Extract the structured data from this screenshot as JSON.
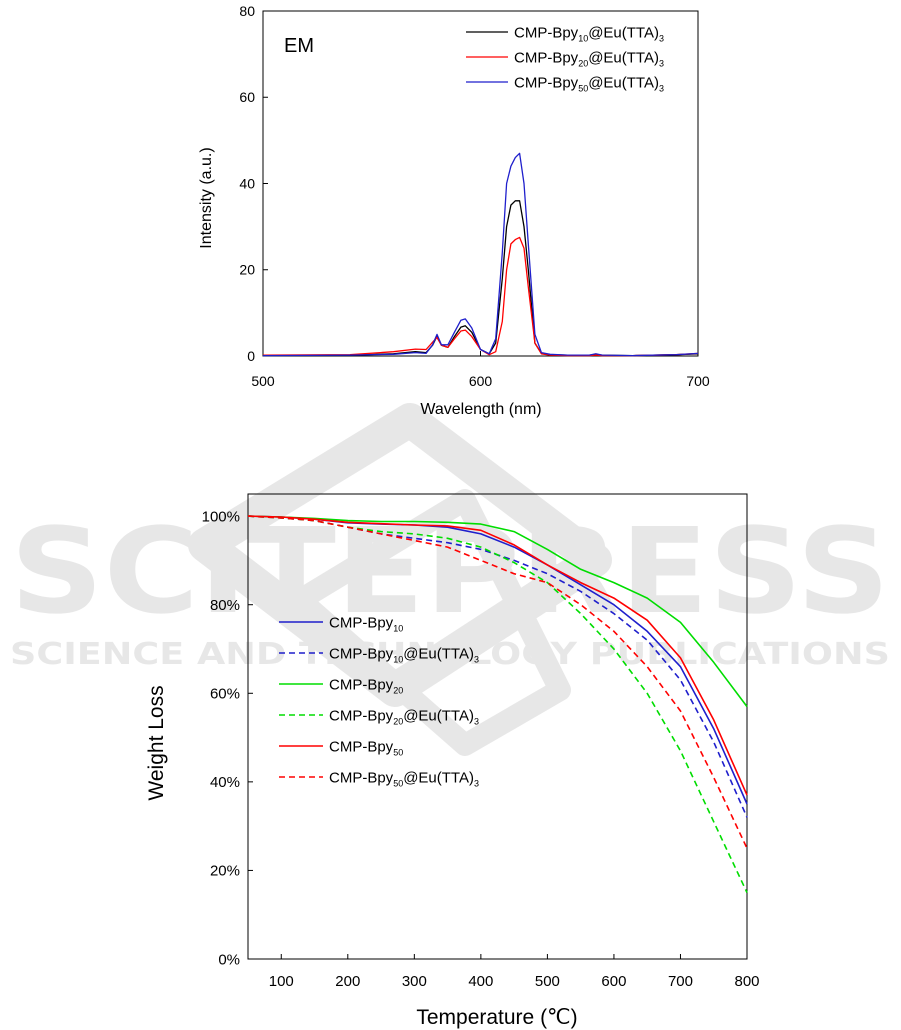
{
  "watermark": {
    "main": "SCITEPRESS",
    "sub": "SCIENCE AND TECHNOLOGY PUBLICATIONS"
  },
  "chart_data": [
    {
      "type": "line",
      "annotation": "EM",
      "xlabel": "Wavelength (nm)",
      "ylabel": "Intensity (a.u.)",
      "xlim": [
        500,
        700
      ],
      "ylim": [
        0,
        80
      ],
      "xticks": [
        "500",
        "600",
        "700"
      ],
      "yticks": [
        "0",
        "20",
        "40",
        "60",
        "80"
      ],
      "grid": false,
      "legend_position": "top-right",
      "x": [
        500,
        540,
        560,
        570,
        575,
        578,
        580,
        582,
        585,
        588,
        591,
        593,
        596,
        600,
        604,
        607,
        610,
        612,
        614,
        616,
        618,
        620,
        622,
        625,
        628,
        632,
        640,
        650,
        653,
        656,
        670,
        690,
        700
      ],
      "series": [
        {
          "name_main": "CMP-Bpy",
          "name_sub": "10",
          "name_tail": "@Eu(TTA)",
          "name_sub2": "3",
          "color": "#000000",
          "values": [
            0.2,
            0.2,
            0.5,
            1.0,
            0.8,
            2.5,
            4.6,
            2.5,
            2.0,
            4.5,
            6.7,
            7.0,
            5.5,
            1.5,
            0.5,
            3.0,
            18.0,
            30.0,
            35.0,
            36.0,
            36.0,
            30.0,
            20.0,
            3.0,
            0.6,
            0.3,
            0.2,
            0.2,
            0.3,
            0.2,
            0.1,
            0.3,
            0.5
          ]
        },
        {
          "name_main": "CMP-Bpy",
          "name_sub": "20",
          "name_tail": "@Eu(TTA)",
          "name_sub2": "3",
          "color": "#ff0000",
          "values": [
            0.2,
            0.3,
            1.0,
            1.6,
            1.5,
            3.2,
            4.3,
            2.5,
            2.0,
            4.0,
            5.8,
            6.0,
            4.5,
            1.5,
            0.3,
            1.0,
            8.0,
            20.0,
            26.0,
            27.0,
            27.5,
            25.0,
            16.0,
            3.0,
            0.5,
            0.2,
            0.1,
            0.1,
            0.2,
            0.1,
            0.1,
            0.3,
            0.6
          ]
        },
        {
          "name_main": "CMP-Bpy",
          "name_sub": "50",
          "name_tail": "@Eu(TTA)",
          "name_sub2": "3",
          "color": "#1f1fcc",
          "values": [
            0.1,
            0.2,
            0.4,
            0.8,
            0.6,
            2.6,
            5.0,
            2.6,
            2.6,
            5.5,
            8.3,
            8.6,
            6.5,
            1.5,
            0.5,
            4.0,
            24.0,
            40.0,
            44.0,
            46.0,
            47.0,
            40.0,
            26.0,
            5.0,
            0.8,
            0.4,
            0.2,
            0.2,
            0.5,
            0.2,
            0.1,
            0.3,
            0.6
          ]
        }
      ]
    },
    {
      "type": "line",
      "xlabel": "Temperature (℃)",
      "ylabel": "Weight Loss",
      "xlim": [
        50,
        800
      ],
      "ylim": [
        0,
        105
      ],
      "xticks": [
        "100",
        "200",
        "300",
        "400",
        "500",
        "600",
        "700",
        "800"
      ],
      "yticks": [
        "0%",
        "20%",
        "40%",
        "60%",
        "80%",
        "100%"
      ],
      "grid": false,
      "legend_position": "center-left",
      "x": [
        50,
        100,
        150,
        200,
        250,
        300,
        350,
        400,
        450,
        500,
        550,
        600,
        650,
        700,
        750,
        800
      ],
      "series": [
        {
          "name_main": "CMP-Bpy",
          "name_sub": "10",
          "name_tail": "",
          "name_sub2": "",
          "color": "#1f1fcc",
          "dash": false,
          "values": [
            100,
            99.8,
            99.3,
            98.5,
            98.2,
            98.0,
            97.5,
            96.0,
            93.0,
            89.0,
            84.5,
            80.0,
            74.0,
            66.0,
            52.0,
            35.0
          ]
        },
        {
          "name_main": "CMP-Bpy",
          "name_sub": "10",
          "name_tail": "@Eu(TTA)",
          "name_sub2": "3",
          "color": "#1f1fcc",
          "dash": true,
          "values": [
            100,
            99.6,
            99.0,
            97.5,
            96.0,
            95.0,
            94.0,
            92.5,
            90.0,
            87.0,
            83.0,
            78.0,
            72.0,
            63.0,
            49.0,
            32.0
          ]
        },
        {
          "name_main": "CMP-Bpy",
          "name_sub": "20",
          "name_tail": "",
          "name_sub2": "",
          "color": "#00dd00",
          "dash": false,
          "values": [
            100,
            99.8,
            99.5,
            99.0,
            98.8,
            98.8,
            98.6,
            98.2,
            96.5,
            92.5,
            88.0,
            85.0,
            81.5,
            76.0,
            67.0,
            57.0
          ]
        },
        {
          "name_main": "CMP-Bpy",
          "name_sub": "20",
          "name_tail": "@Eu(TTA)",
          "name_sub2": "3",
          "color": "#00dd00",
          "dash": true,
          "values": [
            100,
            99.6,
            99.0,
            97.5,
            96.5,
            96.0,
            95.0,
            93.0,
            89.5,
            85.0,
            78.0,
            70.0,
            60.0,
            47.0,
            31.0,
            15.0
          ]
        },
        {
          "name_main": "CMP-Bpy",
          "name_sub": "50",
          "name_tail": "",
          "name_sub2": "",
          "color": "#ff0000",
          "dash": false,
          "values": [
            100,
            99.8,
            99.3,
            98.6,
            98.3,
            98.0,
            97.8,
            96.8,
            93.5,
            89.0,
            85.0,
            81.5,
            76.5,
            68.0,
            54.0,
            37.0
          ]
        },
        {
          "name_main": "CMP-Bpy",
          "name_sub": "50",
          "name_tail": "@Eu(TTA)",
          "name_sub2": "3",
          "color": "#ff0000",
          "dash": true,
          "values": [
            100,
            99.6,
            99.0,
            97.5,
            96.0,
            94.5,
            93.0,
            90.0,
            87.0,
            85.0,
            80.0,
            74.0,
            66.0,
            56.0,
            41.0,
            25.0
          ]
        }
      ]
    }
  ]
}
